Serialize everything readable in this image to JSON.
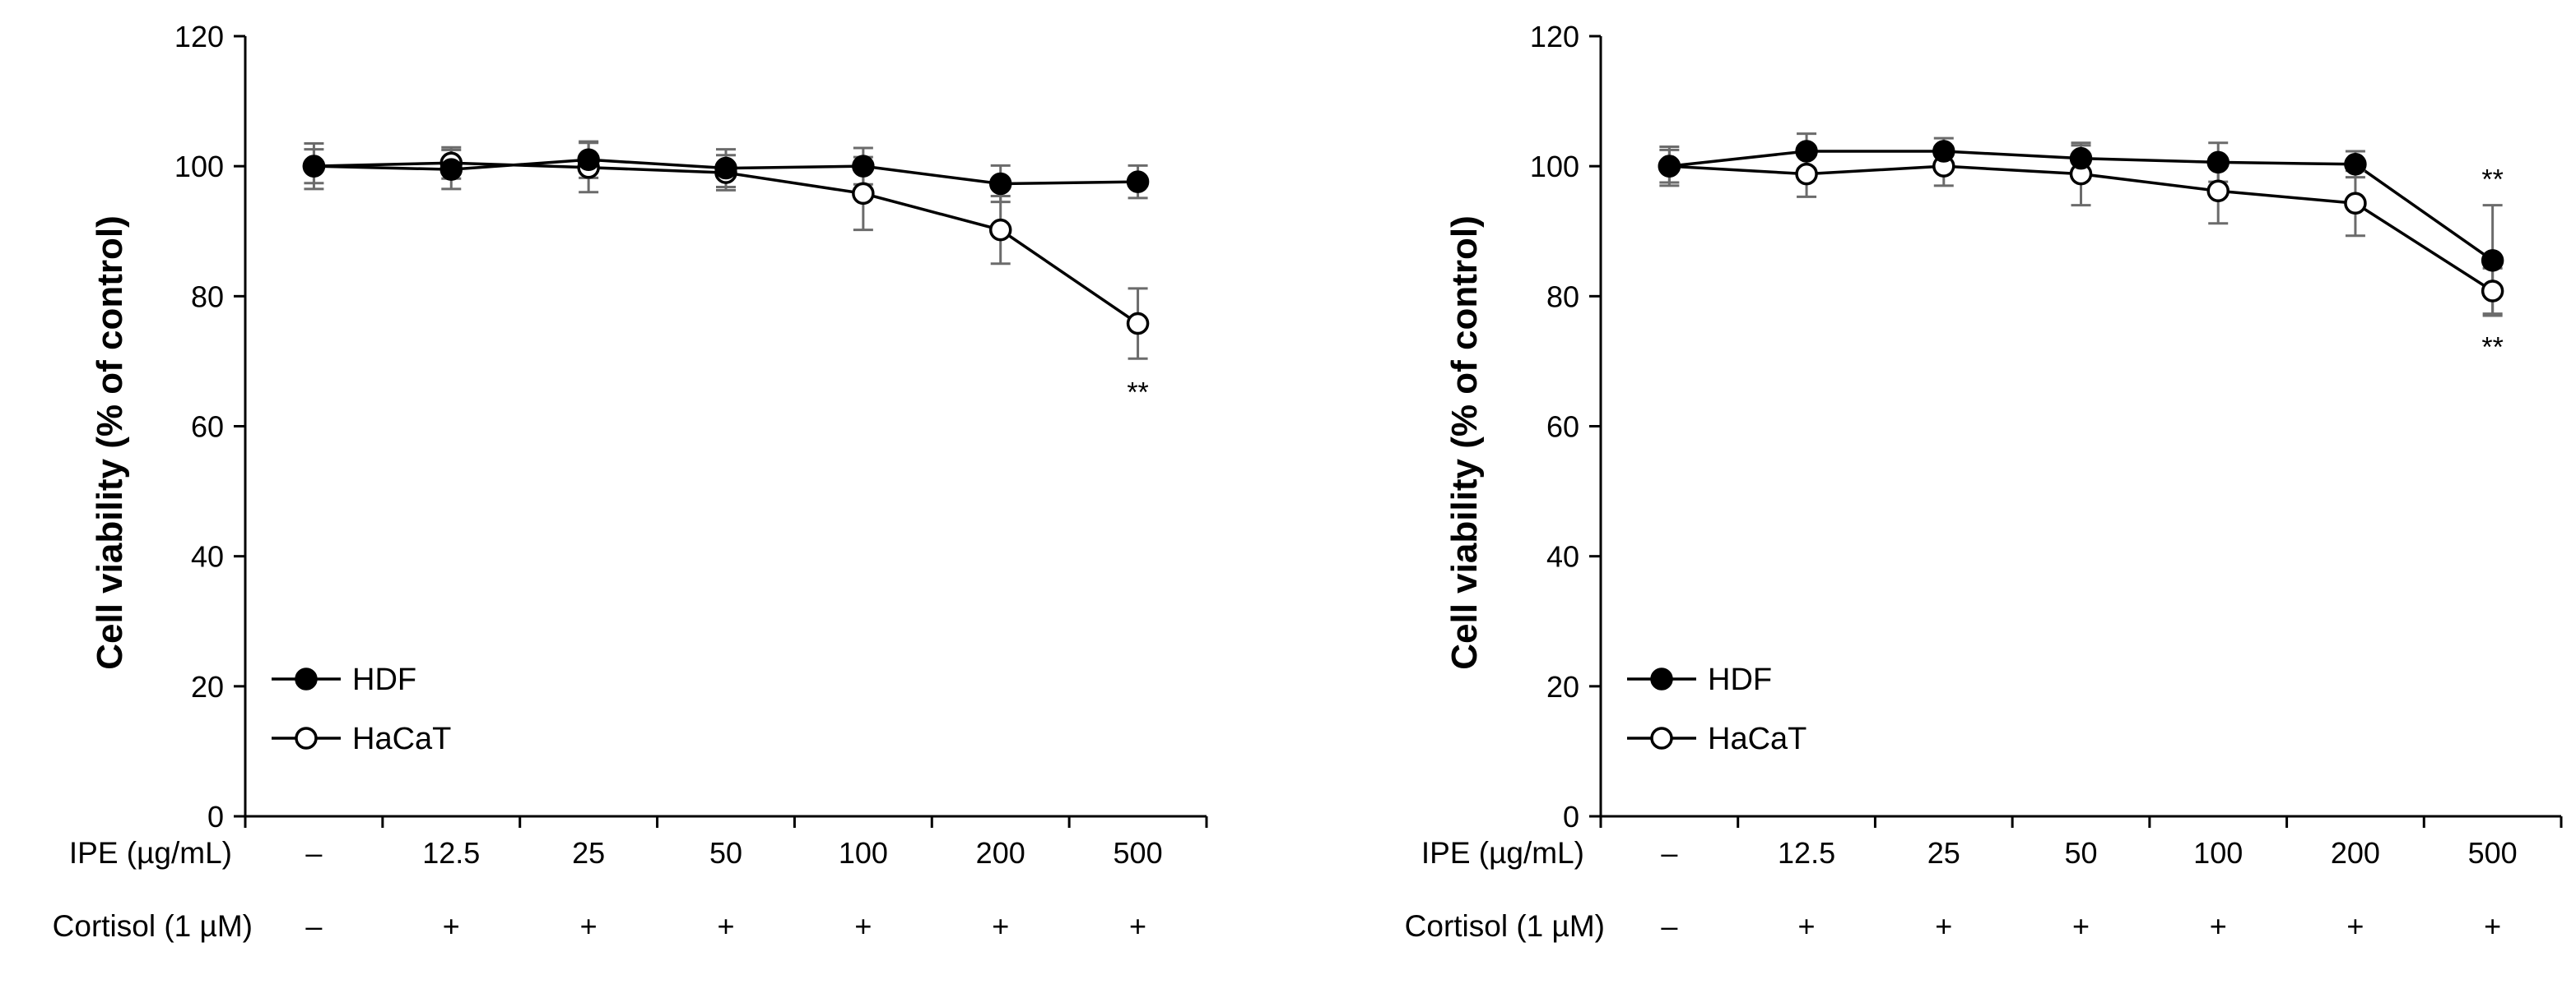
{
  "chart_data": [
    {
      "type": "line",
      "ylabel": "Cell viability (% of control)",
      "ylim": [
        0,
        120
      ],
      "yticks": [
        0,
        20,
        40,
        60,
        80,
        100,
        120
      ],
      "ytick_labels": [
        "0",
        "20",
        "40",
        "60",
        "80",
        "100",
        "120"
      ],
      "grid": false,
      "legend_position": "bottom-left",
      "categories": [
        "–",
        "12.5",
        "25",
        "50",
        "100",
        "200",
        "500"
      ],
      "row_labels": {
        "ipe": "IPE (µg/mL)",
        "cortisol": "Cortisol (1 µM)"
      },
      "cortisol_values": [
        "–",
        "+",
        "+",
        "+",
        "+",
        "+",
        "+"
      ],
      "series": [
        {
          "name": "HDF",
          "marker": "filled-circle",
          "values": [
            100,
            99.5,
            101,
            99.7,
            100,
            97.3,
            97.6
          ],
          "errors": [
            2.6,
            3.0,
            2.8,
            2.9,
            2.8,
            2.8,
            2.5
          ]
        },
        {
          "name": "HaCaT",
          "marker": "open-circle",
          "values": [
            100,
            100.5,
            99.8,
            99.0,
            95.8,
            90.2,
            75.8
          ],
          "errors": [
            3.5,
            2.4,
            3.8,
            2.7,
            5.6,
            5.2,
            5.4
          ]
        }
      ],
      "annotations": [
        {
          "text": "**",
          "series": "HaCaT",
          "index": 6,
          "placement": "below"
        }
      ]
    },
    {
      "type": "line",
      "ylabel": "Cell viability (% of control)",
      "ylim": [
        0,
        120
      ],
      "yticks": [
        0,
        20,
        40,
        60,
        80,
        100,
        120
      ],
      "ytick_labels": [
        "0",
        "20",
        "40",
        "60",
        "80",
        "100",
        "120"
      ],
      "grid": false,
      "legend_position": "bottom-left",
      "categories": [
        "–",
        "12.5",
        "25",
        "50",
        "100",
        "200",
        "500"
      ],
      "row_labels": {
        "ipe": "IPE (µg/mL)",
        "cortisol": "Cortisol (1 µM)"
      },
      "cortisol_values": [
        "–",
        "+",
        "+",
        "+",
        "+",
        "+",
        "+"
      ],
      "series": [
        {
          "name": "HDF",
          "marker": "filled-circle",
          "values": [
            100,
            102.3,
            102.3,
            101.2,
            100.6,
            100.3,
            85.5
          ],
          "errors": [
            2.5,
            2.7,
            2.0,
            2.0,
            3.0,
            2.0,
            8.5
          ]
        },
        {
          "name": "HaCaT",
          "marker": "open-circle",
          "values": [
            100,
            98.8,
            100.0,
            98.8,
            96.2,
            94.3,
            80.8
          ],
          "errors": [
            3.0,
            3.5,
            3.0,
            4.8,
            5.0,
            5.0,
            3.5
          ]
        }
      ],
      "annotations": [
        {
          "text": "**",
          "series": "HDF",
          "index": 6,
          "placement": "above"
        },
        {
          "text": "**",
          "series": "HaCaT",
          "index": 6,
          "placement": "below"
        }
      ]
    }
  ]
}
